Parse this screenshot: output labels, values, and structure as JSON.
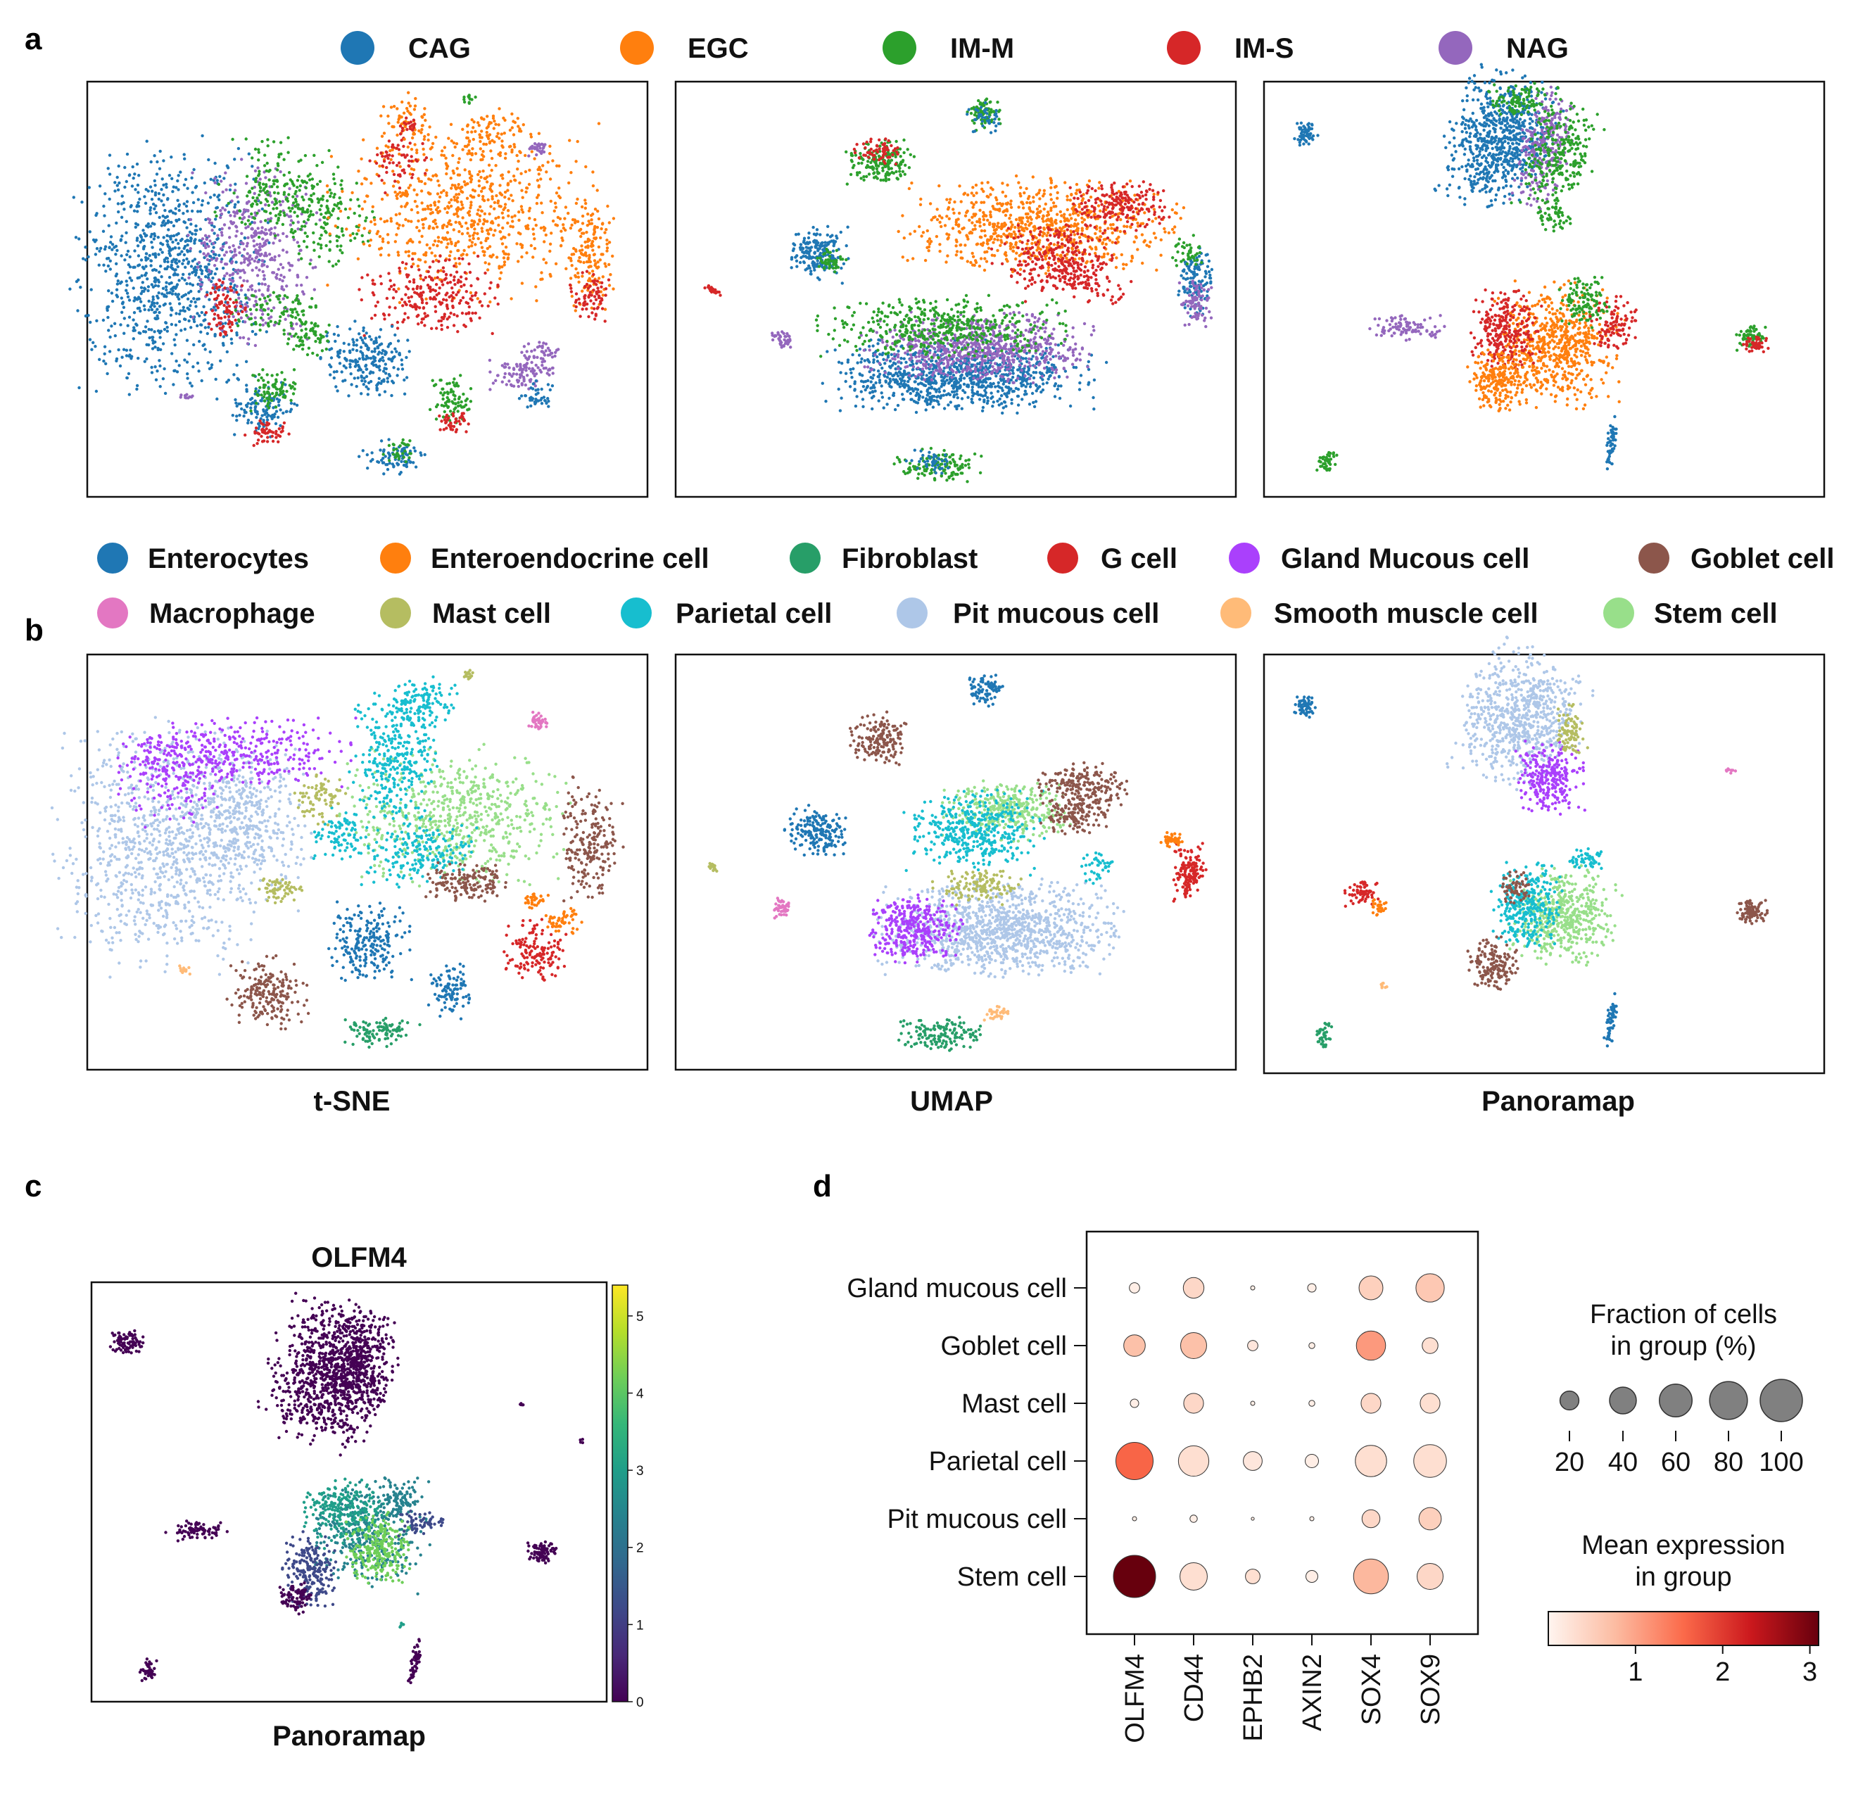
{
  "panel_letters": [
    "a",
    "b",
    "c",
    "d"
  ],
  "colors": {
    "CAG": "#1f77b4",
    "EGC": "#ff7f0e",
    "IM-M": "#2ca02c",
    "IM-S": "#d62728",
    "NAG": "#9467bd",
    "Enterocytes": "#1f77b4",
    "Enteroendocrine cell": "#ff7f0e",
    "Fibroblast": "#279e68",
    "G cell": "#d62728",
    "Gland Mucous cell": "#aa40fc",
    "Goblet cell": "#8c564b",
    "Macrophage": "#e377c2",
    "Mast cell": "#b5bd61",
    "Parietal cell": "#17becf",
    "Pit mucous cell": "#aec7e8",
    "Smooth muscle cell": "#ffbb78",
    "Stem cell": "#98df8a"
  },
  "chart_data": [
    {
      "id": "a",
      "type": "scatter",
      "legend": [
        "CAG",
        "EGC",
        "IM-M",
        "IM-S",
        "NAG"
      ],
      "panels": [
        "t-SNE",
        "UMAP",
        "Panoramap"
      ]
    },
    {
      "id": "b",
      "type": "scatter",
      "legend": [
        "Enterocytes",
        "Enteroendocrine cell",
        "Fibroblast",
        "G cell",
        "Gland Mucous cell",
        "Goblet cell",
        "Macrophage",
        "Mast cell",
        "Parietal cell",
        "Pit mucous cell",
        "Smooth muscle cell",
        "Stem cell"
      ],
      "panels": [
        "t-SNE",
        "UMAP",
        "Panoramap"
      ]
    },
    {
      "id": "c",
      "type": "scatter",
      "title": "OLFM4",
      "xlabel": "Panoramap",
      "colorbar": {
        "ticks": [
          0,
          1,
          2,
          3,
          4,
          5
        ],
        "range": [
          0,
          5.4
        ],
        "colormap": "viridis"
      }
    },
    {
      "id": "d",
      "type": "dotplot",
      "rows": [
        "Gland mucous cell",
        "Goblet cell",
        "Mast cell",
        "Parietal cell",
        "Pit mucous cell",
        "Stem cell"
      ],
      "columns": [
        "OLFM4",
        "CD44",
        "EPHB2",
        "AXIN2",
        "SOX4",
        "SOX9"
      ],
      "fraction": [
        [
          6,
          24,
          1,
          4,
          32,
          45
        ],
        [
          26,
          38,
          6,
          2,
          48,
          14
        ],
        [
          4,
          22,
          1,
          2,
          22,
          22
        ],
        [
          78,
          52,
          20,
          10,
          55,
          60
        ],
        [
          1,
          3,
          0.5,
          1,
          18,
          28
        ],
        [
          100,
          42,
          12,
          8,
          68,
          38
        ]
      ],
      "expression": [
        [
          0.1,
          0.4,
          0.1,
          0.1,
          0.5,
          0.6
        ],
        [
          0.7,
          0.7,
          0.2,
          0.1,
          1.1,
          0.3
        ],
        [
          0.1,
          0.4,
          0.1,
          0.1,
          0.4,
          0.3
        ],
        [
          1.6,
          0.3,
          0.2,
          0.1,
          0.3,
          0.3
        ],
        [
          0.1,
          0.1,
          0.1,
          0.1,
          0.4,
          0.5
        ],
        [
          3.1,
          0.3,
          0.3,
          0.1,
          0.8,
          0.4
        ]
      ],
      "size_legend": {
        "title_lines": [
          "Fraction of cells",
          "in group (%)"
        ],
        "values": [
          20,
          40,
          60,
          80,
          100
        ]
      },
      "color_legend": {
        "title_lines": [
          "Mean expression",
          "in group"
        ],
        "ticks": [
          1,
          2,
          3
        ],
        "range": [
          0,
          3.1
        ]
      }
    }
  ]
}
